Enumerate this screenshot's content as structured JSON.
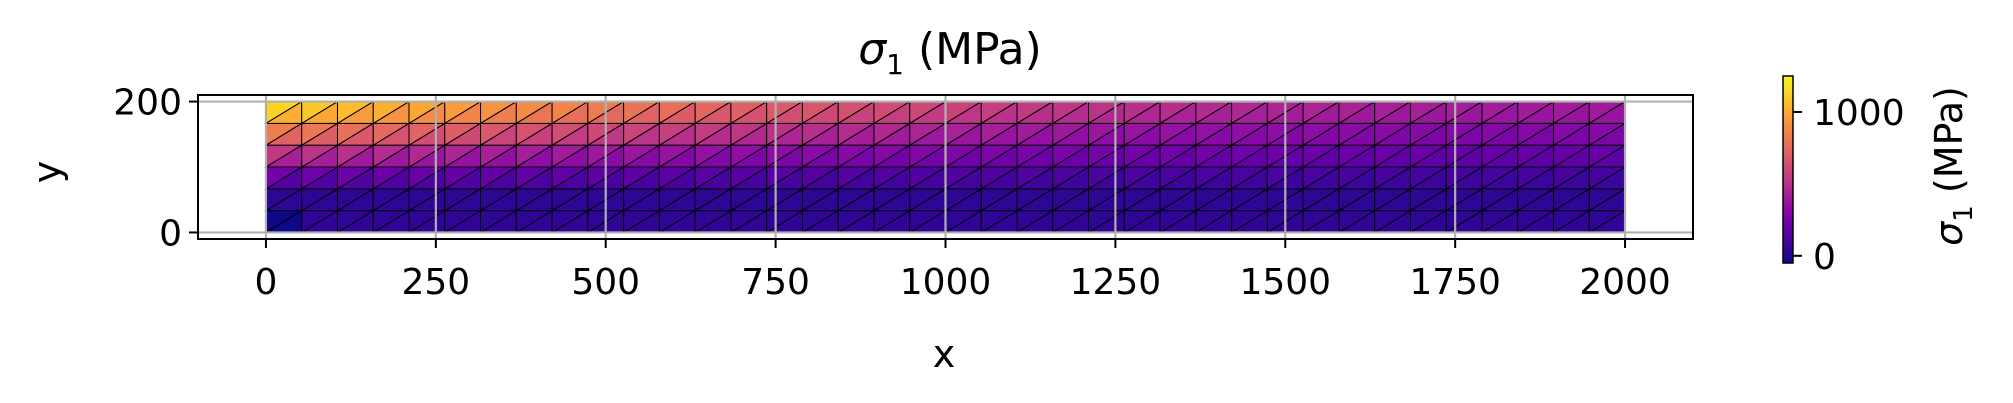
{
  "chart_data": {
    "type": "heatmap",
    "title": "σ₁ (MPa)",
    "xlabel": "x",
    "ylabel": "y",
    "xlim": [
      -100,
      2100
    ],
    "ylim": [
      -10,
      210
    ],
    "x_ticks": [
      0,
      250,
      500,
      750,
      1000,
      1250,
      1500,
      1750,
      2000
    ],
    "y_ticks": [
      0,
      200
    ],
    "grid": true,
    "mesh": {
      "x_range": [
        0,
        2000
      ],
      "y_range": [
        0,
        200
      ],
      "nx": 38,
      "ny": 6,
      "element": "triangles",
      "edge_color": "#000000"
    },
    "field": {
      "name": "σ₁",
      "unit": "MPa",
      "description": "max at top-left (~1250), decreasing with x and with depth; ~0 near bottom",
      "max_value": 1250,
      "min_value": -50,
      "model": "sigma1 = 1250 * ((y/200) - 0.5) * 2 * (1 - x/2000) for upper half, near 0 elsewhere"
    },
    "colorbar": {
      "label": "σ₁ (MPa)",
      "colormap": "plasma",
      "vmin": -50,
      "vmax": 1250,
      "ticks": [
        0,
        1000
      ],
      "tick_labels": [
        "0",
        "1000"
      ],
      "placement": "right"
    }
  },
  "labels": {
    "title_sigma": "σ",
    "title_sub": "1",
    "title_rest": " (MPa)",
    "xlabel": "x",
    "ylabel": "y",
    "cbar_sigma": "σ",
    "cbar_sub": "1",
    "cbar_rest": " (MPa)",
    "x_tick_labels": [
      "0",
      "250",
      "500",
      "750",
      "1000",
      "1250",
      "1500",
      "1750",
      "2000"
    ],
    "y_tick_labels": [
      "0",
      "200"
    ],
    "cbar_tick_labels": [
      "0",
      "1000"
    ]
  }
}
